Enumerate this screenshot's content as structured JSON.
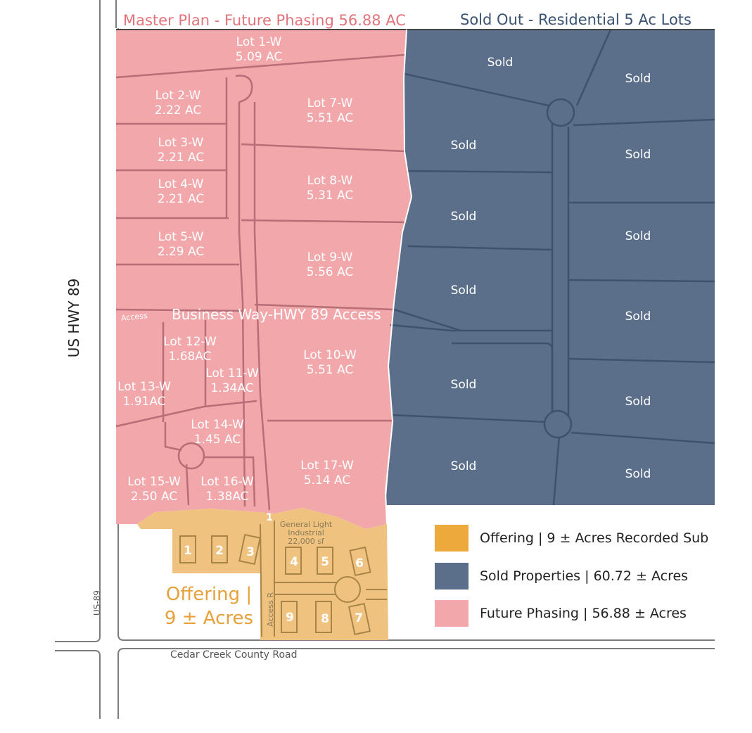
{
  "headers": {
    "master_plan": "Master Plan - Future Phasing 56.88 AC",
    "sold_out": "Sold Out - Residential 5 Ac Lots"
  },
  "colors": {
    "future_phasing": "#f2a7ab",
    "sold": "#5b6f8b",
    "offering": "#f0c27f",
    "offering_legend": "#eea93c",
    "master_plan_text": "#e2727b",
    "sold_out_text": "#3a5372"
  },
  "roads": {
    "us_hwy": "US HWY 89",
    "us_hwy_small": "US-89",
    "county_road": "Cedar Creek County Road",
    "business_way": "Business Way-HWY 89 Access",
    "access_small": "Access",
    "access_rd": "Access R"
  },
  "lots_w": [
    {
      "id": "lot-1-w",
      "name": "Lot 1-W",
      "acres": "5.09 AC"
    },
    {
      "id": "lot-2-w",
      "name": "Lot 2-W",
      "acres": "2.22 AC"
    },
    {
      "id": "lot-3-w",
      "name": "Lot 3-W",
      "acres": "2.21 AC"
    },
    {
      "id": "lot-4-w",
      "name": "Lot 4-W",
      "acres": "2.21 AC"
    },
    {
      "id": "lot-5-w",
      "name": "Lot 5-W",
      "acres": "2.29 AC"
    },
    {
      "id": "lot-7-w",
      "name": "Lot 7-W",
      "acres": "5.51 AC"
    },
    {
      "id": "lot-8-w",
      "name": "Lot 8-W",
      "acres": "5.31 AC"
    },
    {
      "id": "lot-9-w",
      "name": "Lot 9-W",
      "acres": "5.56 AC"
    },
    {
      "id": "lot-10-w",
      "name": "Lot 10-W",
      "acres": "5.51 AC"
    },
    {
      "id": "lot-11-w",
      "name": "Lot 11-W",
      "acres": "1.34AC"
    },
    {
      "id": "lot-12-w",
      "name": "Lot 12-W",
      "acres": "1.68AC"
    },
    {
      "id": "lot-13-w",
      "name": "Lot 13-W",
      "acres": "1.91AC"
    },
    {
      "id": "lot-14-w",
      "name": "Lot 14-W",
      "acres": "1.45 AC"
    },
    {
      "id": "lot-15-w",
      "name": "Lot 15-W",
      "acres": "2.50 AC"
    },
    {
      "id": "lot-16-w",
      "name": "Lot 16-W",
      "acres": "1.38AC"
    },
    {
      "id": "lot-17-w",
      "name": "Lot 17-W",
      "acres": "5.14 AC"
    }
  ],
  "sold_label": "Sold",
  "offering": {
    "line1": "Offering |",
    "line2": "9 ± Acres",
    "lot_numbers": [
      "1",
      "1",
      "2",
      "3",
      "4",
      "5",
      "6",
      "7",
      "8",
      "9"
    ],
    "industrial_line1": "General Light",
    "industrial_line2": "Industrial",
    "industrial_line3": "22,000 sf"
  },
  "legend": [
    {
      "label": "Offering | 9 ± Acres Recorded Sub",
      "color": "#eea93c"
    },
    {
      "label": "Sold Properties | 60.72 ± Acres",
      "color": "#5b6f8b"
    },
    {
      "label": "Future Phasing | 56.88 ± Acres",
      "color": "#f2a7ab"
    }
  ]
}
